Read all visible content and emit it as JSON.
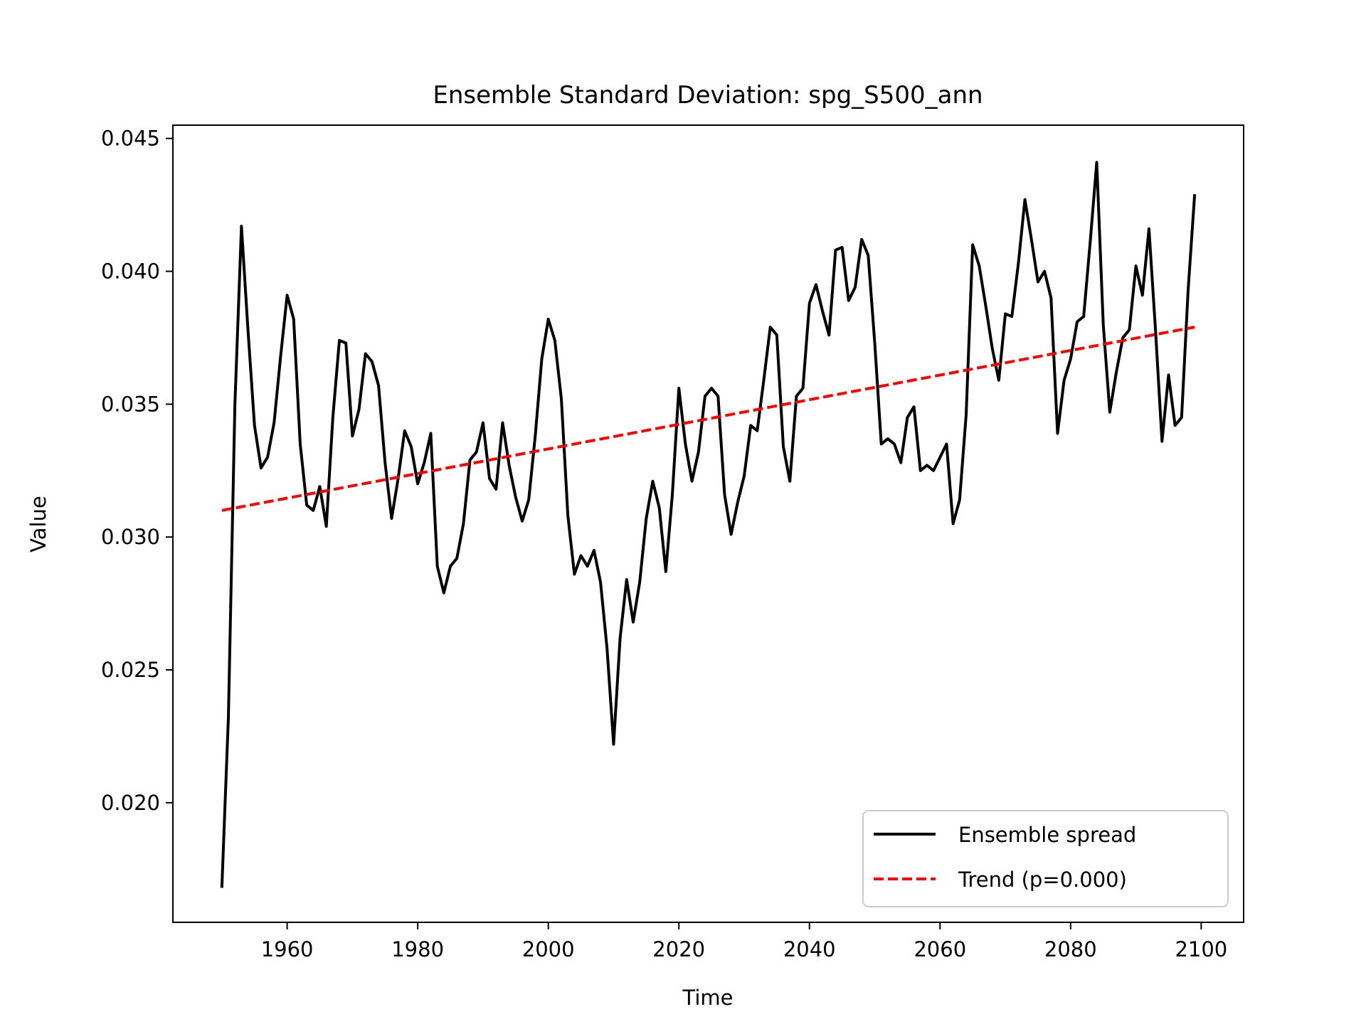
{
  "chart_data": {
    "type": "line",
    "title": "Ensemble Standard Deviation: spg_S500_ann",
    "xlabel": "Time",
    "ylabel": "Value",
    "xlim": [
      1942.5,
      2106.5
    ],
    "ylim": [
      0.0155,
      0.0455
    ],
    "xticks": [
      1960,
      1980,
      2000,
      2020,
      2040,
      2060,
      2080,
      2100
    ],
    "yticks": [
      0.02,
      0.025,
      0.03,
      0.035,
      0.04,
      0.045
    ],
    "ytick_labels": [
      "0.020",
      "0.025",
      "0.030",
      "0.035",
      "0.040",
      "0.045"
    ],
    "grid": false,
    "legend_position": "lower-right",
    "series": [
      {
        "name": "Ensemble spread",
        "style": "solid",
        "color": "#000000",
        "x": [
          1950,
          1951,
          1952,
          1953,
          1954,
          1955,
          1956,
          1957,
          1958,
          1959,
          1960,
          1961,
          1962,
          1963,
          1964,
          1965,
          1966,
          1967,
          1968,
          1969,
          1970,
          1971,
          1972,
          1973,
          1974,
          1975,
          1976,
          1977,
          1978,
          1979,
          1980,
          1981,
          1982,
          1983,
          1984,
          1985,
          1986,
          1987,
          1988,
          1989,
          1990,
          1991,
          1992,
          1993,
          1994,
          1995,
          1996,
          1997,
          1998,
          1999,
          2000,
          2001,
          2002,
          2003,
          2004,
          2005,
          2006,
          2007,
          2008,
          2009,
          2010,
          2011,
          2012,
          2013,
          2014,
          2015,
          2016,
          2017,
          2018,
          2019,
          2020,
          2021,
          2022,
          2023,
          2024,
          2025,
          2026,
          2027,
          2028,
          2029,
          2030,
          2031,
          2032,
          2033,
          2034,
          2035,
          2036,
          2037,
          2038,
          2039,
          2040,
          2041,
          2042,
          2043,
          2044,
          2045,
          2046,
          2047,
          2048,
          2049,
          2050,
          2051,
          2052,
          2053,
          2054,
          2055,
          2056,
          2057,
          2058,
          2059,
          2060,
          2061,
          2062,
          2063,
          2064,
          2065,
          2066,
          2067,
          2068,
          2069,
          2070,
          2071,
          2072,
          2073,
          2074,
          2075,
          2076,
          2077,
          2078,
          2079,
          2080,
          2081,
          2082,
          2083,
          2084,
          2085,
          2086,
          2087,
          2088,
          2089,
          2090,
          2091,
          2092,
          2093,
          2094,
          2095,
          2096,
          2097,
          2098,
          2099
        ],
        "values": [
          0.0168,
          0.0232,
          0.035,
          0.0417,
          0.0378,
          0.0342,
          0.0326,
          0.033,
          0.0343,
          0.0368,
          0.0391,
          0.0382,
          0.0335,
          0.0312,
          0.031,
          0.0319,
          0.0304,
          0.0345,
          0.0374,
          0.0373,
          0.0338,
          0.0348,
          0.0369,
          0.0366,
          0.0357,
          0.0328,
          0.0307,
          0.0322,
          0.034,
          0.0334,
          0.032,
          0.0328,
          0.0339,
          0.0289,
          0.0279,
          0.0289,
          0.0292,
          0.0305,
          0.0329,
          0.0332,
          0.0343,
          0.0322,
          0.0318,
          0.0343,
          0.0327,
          0.0315,
          0.0306,
          0.0314,
          0.0338,
          0.0367,
          0.0382,
          0.0374,
          0.0352,
          0.0308,
          0.0286,
          0.0293,
          0.0289,
          0.0295,
          0.0283,
          0.0258,
          0.0222,
          0.0262,
          0.0284,
          0.0268,
          0.0283,
          0.0307,
          0.0321,
          0.0311,
          0.0287,
          0.0316,
          0.0356,
          0.0335,
          0.0321,
          0.0332,
          0.0353,
          0.0356,
          0.0353,
          0.0316,
          0.0301,
          0.0313,
          0.0323,
          0.0342,
          0.034,
          0.0359,
          0.0379,
          0.0376,
          0.0334,
          0.0321,
          0.0353,
          0.0356,
          0.0388,
          0.0395,
          0.0385,
          0.0376,
          0.0408,
          0.0409,
          0.0389,
          0.0394,
          0.0412,
          0.0406,
          0.0373,
          0.0335,
          0.0337,
          0.0335,
          0.0328,
          0.0345,
          0.0349,
          0.0325,
          0.0327,
          0.0325,
          0.033,
          0.0335,
          0.0305,
          0.0314,
          0.0346,
          0.041,
          0.0402,
          0.0387,
          0.0371,
          0.0359,
          0.0384,
          0.0383,
          0.0403,
          0.0427,
          0.0412,
          0.0396,
          0.04,
          0.039,
          0.0339,
          0.0359,
          0.0367,
          0.0381,
          0.0383,
          0.0411,
          0.0441,
          0.038,
          0.0347,
          0.0362,
          0.0375,
          0.0378,
          0.0402,
          0.0391,
          0.0416,
          0.0378,
          0.0336,
          0.0361,
          0.0342,
          0.0345,
          0.0393,
          0.0429
        ]
      },
      {
        "name": "Trend (p=0.000)",
        "style": "dashed",
        "color": "#ff0000",
        "x": [
          1950,
          2099
        ],
        "values": [
          0.031,
          0.0379
        ]
      }
    ]
  }
}
